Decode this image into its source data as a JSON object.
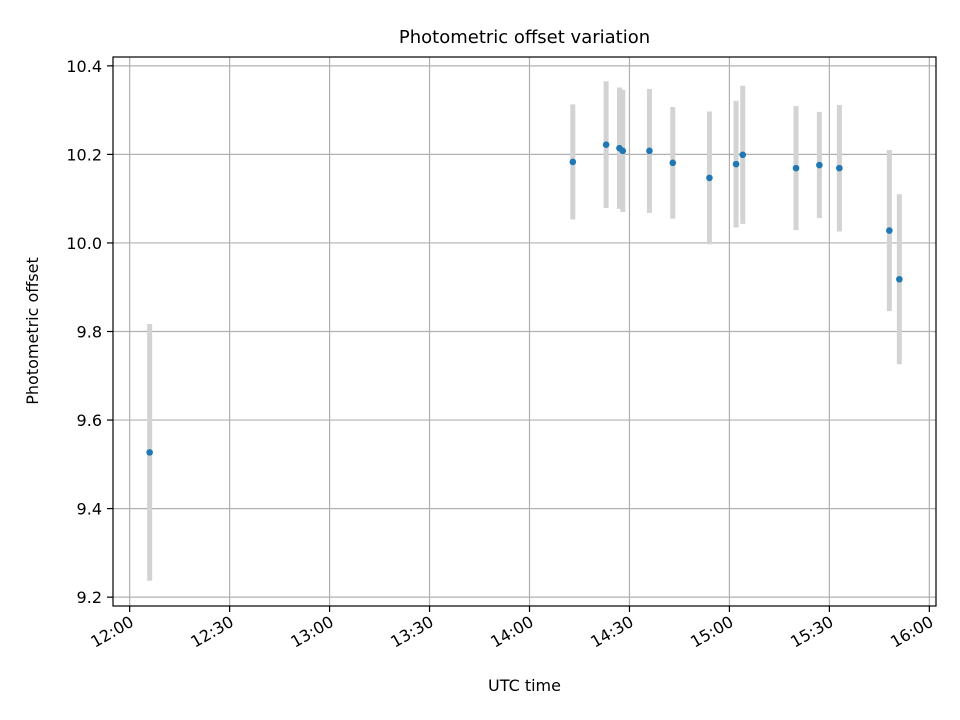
{
  "chart_data": {
    "type": "scatter",
    "title": "Photometric offset variation",
    "xlabel": "UTC time",
    "ylabel": "Photometric offset",
    "x_axis": {
      "kind": "time",
      "range": [
        "11:55",
        "16:02"
      ],
      "ticks": [
        "12:00",
        "12:30",
        "13:00",
        "13:30",
        "14:00",
        "14:30",
        "15:00",
        "15:30",
        "16:00"
      ]
    },
    "y_axis": {
      "range": [
        9.18,
        10.42
      ],
      "ticks": [
        9.2,
        9.4,
        9.6,
        9.8,
        10.0,
        10.2,
        10.4
      ],
      "tick_labels": [
        "9.2",
        "9.4",
        "9.6",
        "9.8",
        "10.0",
        "10.2",
        "10.4"
      ]
    },
    "grid": true,
    "colors": {
      "point": "#1f77b4",
      "errorbar": "#d3d3d3",
      "grid": "#b0b0b0"
    },
    "points": [
      {
        "time": "12:06",
        "value": 9.527,
        "err": 0.29
      },
      {
        "time": "14:13",
        "value": 10.183,
        "err": 0.13
      },
      {
        "time": "14:23",
        "value": 10.222,
        "err": 0.143
      },
      {
        "time": "14:27",
        "value": 10.214,
        "err": 0.137
      },
      {
        "time": "14:28",
        "value": 10.208,
        "err": 0.138
      },
      {
        "time": "14:36",
        "value": 10.208,
        "err": 0.14
      },
      {
        "time": "14:43",
        "value": 10.181,
        "err": 0.126
      },
      {
        "time": "14:54",
        "value": 10.147,
        "err": 0.15
      },
      {
        "time": "15:02",
        "value": 10.178,
        "err": 0.143
      },
      {
        "time": "15:04",
        "value": 10.199,
        "err": 0.156
      },
      {
        "time": "15:20",
        "value": 10.169,
        "err": 0.14
      },
      {
        "time": "15:27",
        "value": 10.176,
        "err": 0.12
      },
      {
        "time": "15:33",
        "value": 10.169,
        "err": 0.143
      },
      {
        "time": "15:48",
        "value": 10.028,
        "err": 0.182
      },
      {
        "time": "15:51",
        "value": 9.918,
        "err": 0.192
      }
    ]
  }
}
